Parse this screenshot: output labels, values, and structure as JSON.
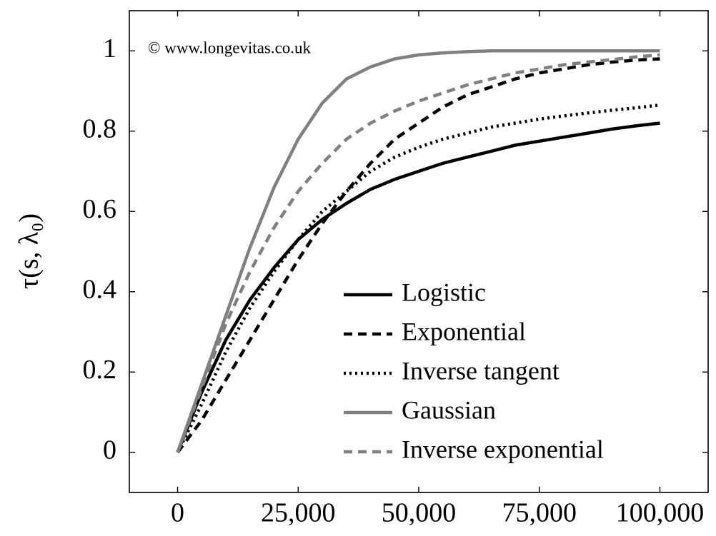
{
  "chart_data": {
    "type": "line",
    "ylabel": "τ(s, λ₀)",
    "annotation": "© www.longevitas.co.uk",
    "x": [
      0,
      5000,
      10000,
      15000,
      20000,
      25000,
      30000,
      35000,
      40000,
      45000,
      50000,
      55000,
      60000,
      65000,
      70000,
      75000,
      80000,
      85000,
      90000,
      95000,
      100000
    ],
    "series": [
      {
        "name": "Logistic",
        "color": "#000000",
        "style": "solid",
        "values": [
          0,
          0.15,
          0.28,
          0.38,
          0.46,
          0.53,
          0.58,
          0.62,
          0.655,
          0.68,
          0.7,
          0.72,
          0.735,
          0.75,
          0.765,
          0.775,
          0.785,
          0.795,
          0.805,
          0.813,
          0.82
        ]
      },
      {
        "name": "Exponential",
        "color": "#000000",
        "style": "dashed",
        "values": [
          0,
          0.08,
          0.18,
          0.28,
          0.38,
          0.48,
          0.57,
          0.65,
          0.72,
          0.78,
          0.82,
          0.86,
          0.89,
          0.91,
          0.93,
          0.945,
          0.955,
          0.965,
          0.972,
          0.977,
          0.98
        ]
      },
      {
        "name": "Inverse tangent",
        "color": "#000000",
        "style": "dotted",
        "values": [
          0,
          0.12,
          0.25,
          0.36,
          0.45,
          0.53,
          0.6,
          0.65,
          0.7,
          0.735,
          0.76,
          0.78,
          0.795,
          0.81,
          0.82,
          0.83,
          0.838,
          0.845,
          0.852,
          0.858,
          0.865
        ]
      },
      {
        "name": "Gaussian",
        "color": "#808080",
        "style": "solid",
        "values": [
          0,
          0.17,
          0.34,
          0.51,
          0.66,
          0.78,
          0.87,
          0.93,
          0.96,
          0.98,
          0.99,
          0.995,
          0.998,
          1,
          1,
          1,
          1,
          1,
          1,
          1,
          1
        ]
      },
      {
        "name": "Inverse exponential",
        "color": "#808080",
        "style": "dashed",
        "values": [
          0,
          0.16,
          0.32,
          0.45,
          0.56,
          0.65,
          0.72,
          0.78,
          0.82,
          0.85,
          0.875,
          0.895,
          0.915,
          0.93,
          0.945,
          0.955,
          0.965,
          0.972,
          0.978,
          0.985,
          0.99
        ]
      }
    ],
    "xlim": [
      -10000,
      110000
    ],
    "xticks": [
      0,
      {
        "value": 25000,
        "label": "25,000"
      },
      {
        "value": 50000,
        "label": "50,000"
      },
      {
        "value": 75000,
        "label": "75,000"
      },
      {
        "value": 100000,
        "label": "100,000"
      }
    ],
    "ylim": [
      -0.1,
      1.1
    ],
    "yticks": [
      0,
      0.2,
      0.4,
      0.6,
      0.8,
      1
    ],
    "grid": false,
    "legend": "lower right"
  }
}
